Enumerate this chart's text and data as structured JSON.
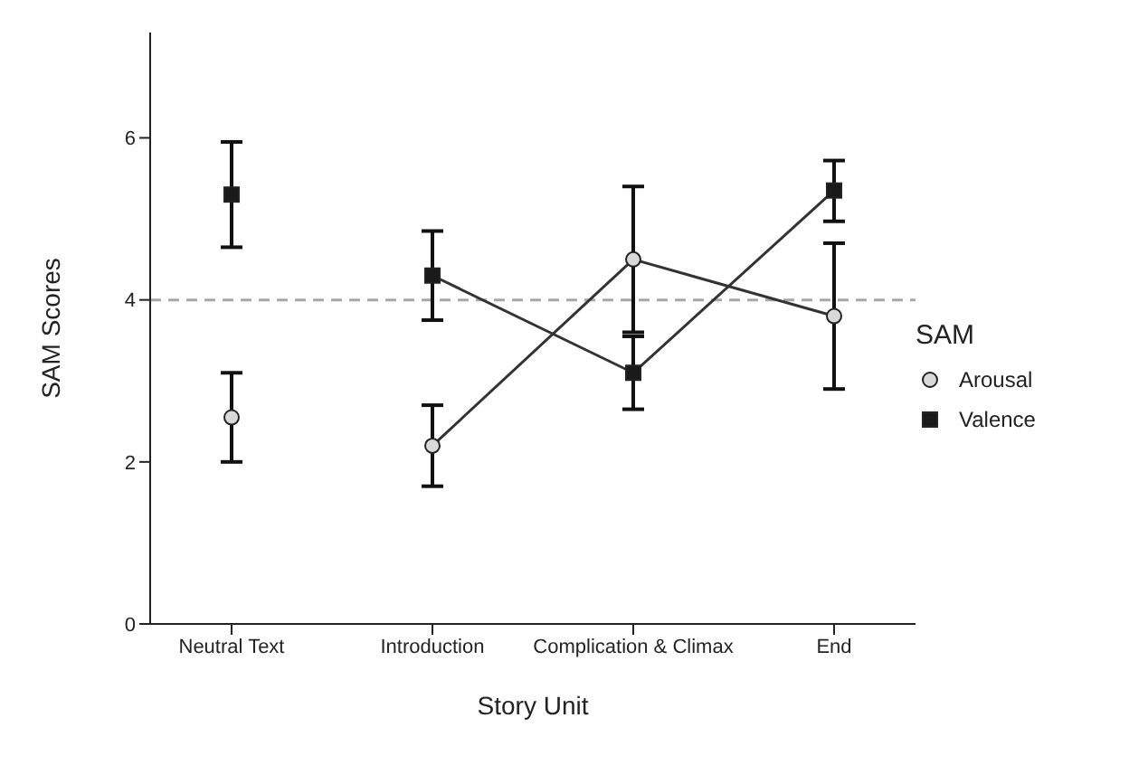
{
  "chart_data": {
    "type": "scatter",
    "xlabel": "Story Unit",
    "ylabel": "SAM Scores",
    "legend_title": "SAM",
    "categories": [
      "Neutral Text",
      "Introduction",
      "Complication & Climax",
      "End"
    ],
    "series": [
      {
        "name": "Arousal",
        "marker": "circle",
        "color": "#d9d9d9",
        "values": [
          2.55,
          2.2,
          4.5,
          3.8
        ],
        "errors": [
          [
            2.0,
            3.1
          ],
          [
            1.7,
            2.7
          ],
          [
            3.6,
            5.4
          ],
          [
            2.9,
            4.7
          ]
        ]
      },
      {
        "name": "Valence",
        "marker": "square",
        "color": "#1a1a1a",
        "values": [
          5.3,
          4.3,
          3.1,
          5.35
        ],
        "errors": [
          [
            4.65,
            5.95
          ],
          [
            3.75,
            4.85
          ],
          [
            2.65,
            3.55
          ],
          [
            4.97,
            5.72
          ]
        ]
      },
      {
        "type": "line",
        "marker": "none",
        "color": "#333333",
        "values": [
          null,
          2.2,
          4.5,
          3.8
        ]
      },
      {
        "type": "line",
        "marker": "none",
        "color": "#333333",
        "values": [
          null,
          4.3,
          3.1,
          5.35
        ]
      }
    ],
    "ylim": [
      0,
      7.3
    ],
    "yticks": [
      0,
      2,
      4,
      6
    ],
    "grid": false,
    "legend": "right",
    "ref_lines": [
      {
        "axis": "y",
        "value": 4,
        "color": "#a6a6a6",
        "line_style": "dashed"
      }
    ]
  }
}
